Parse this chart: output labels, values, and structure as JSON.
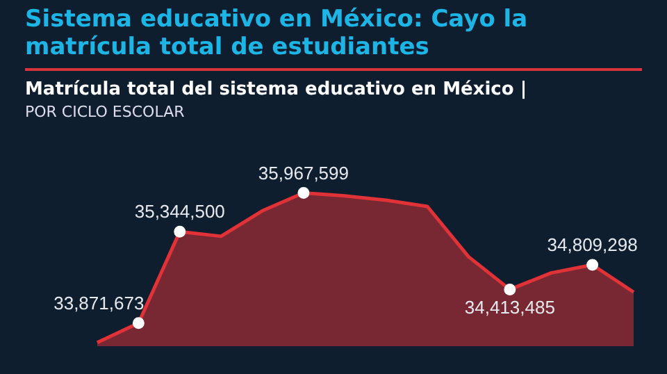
{
  "chart_data": {
    "type": "area",
    "title": "Sistema educativo en México: Cayo la matrícula total de estudiantes",
    "subtitle": "Matrícula total del sistema educativo en México | POR CICLO ESCOLAR",
    "categories": [
      null,
      null,
      null,
      null,
      null,
      null,
      null,
      null,
      null,
      null,
      null,
      null,
      null,
      null
    ],
    "series": [
      {
        "color": "#e03237",
        "values": [
          33560000,
          33871673,
          35344500,
          35270000,
          35680000,
          35967599,
          35920000,
          35850000,
          35750000,
          34940000,
          34413485,
          34680000,
          34809298,
          34370000
        ],
        "value_labels": [
          null,
          "33,871,673",
          "35,344,500",
          null,
          null,
          "35,967,599",
          null,
          null,
          null,
          null,
          "34,413,485",
          null,
          "34,809,298",
          null
        ]
      }
    ],
    "legend": false
  }
}
